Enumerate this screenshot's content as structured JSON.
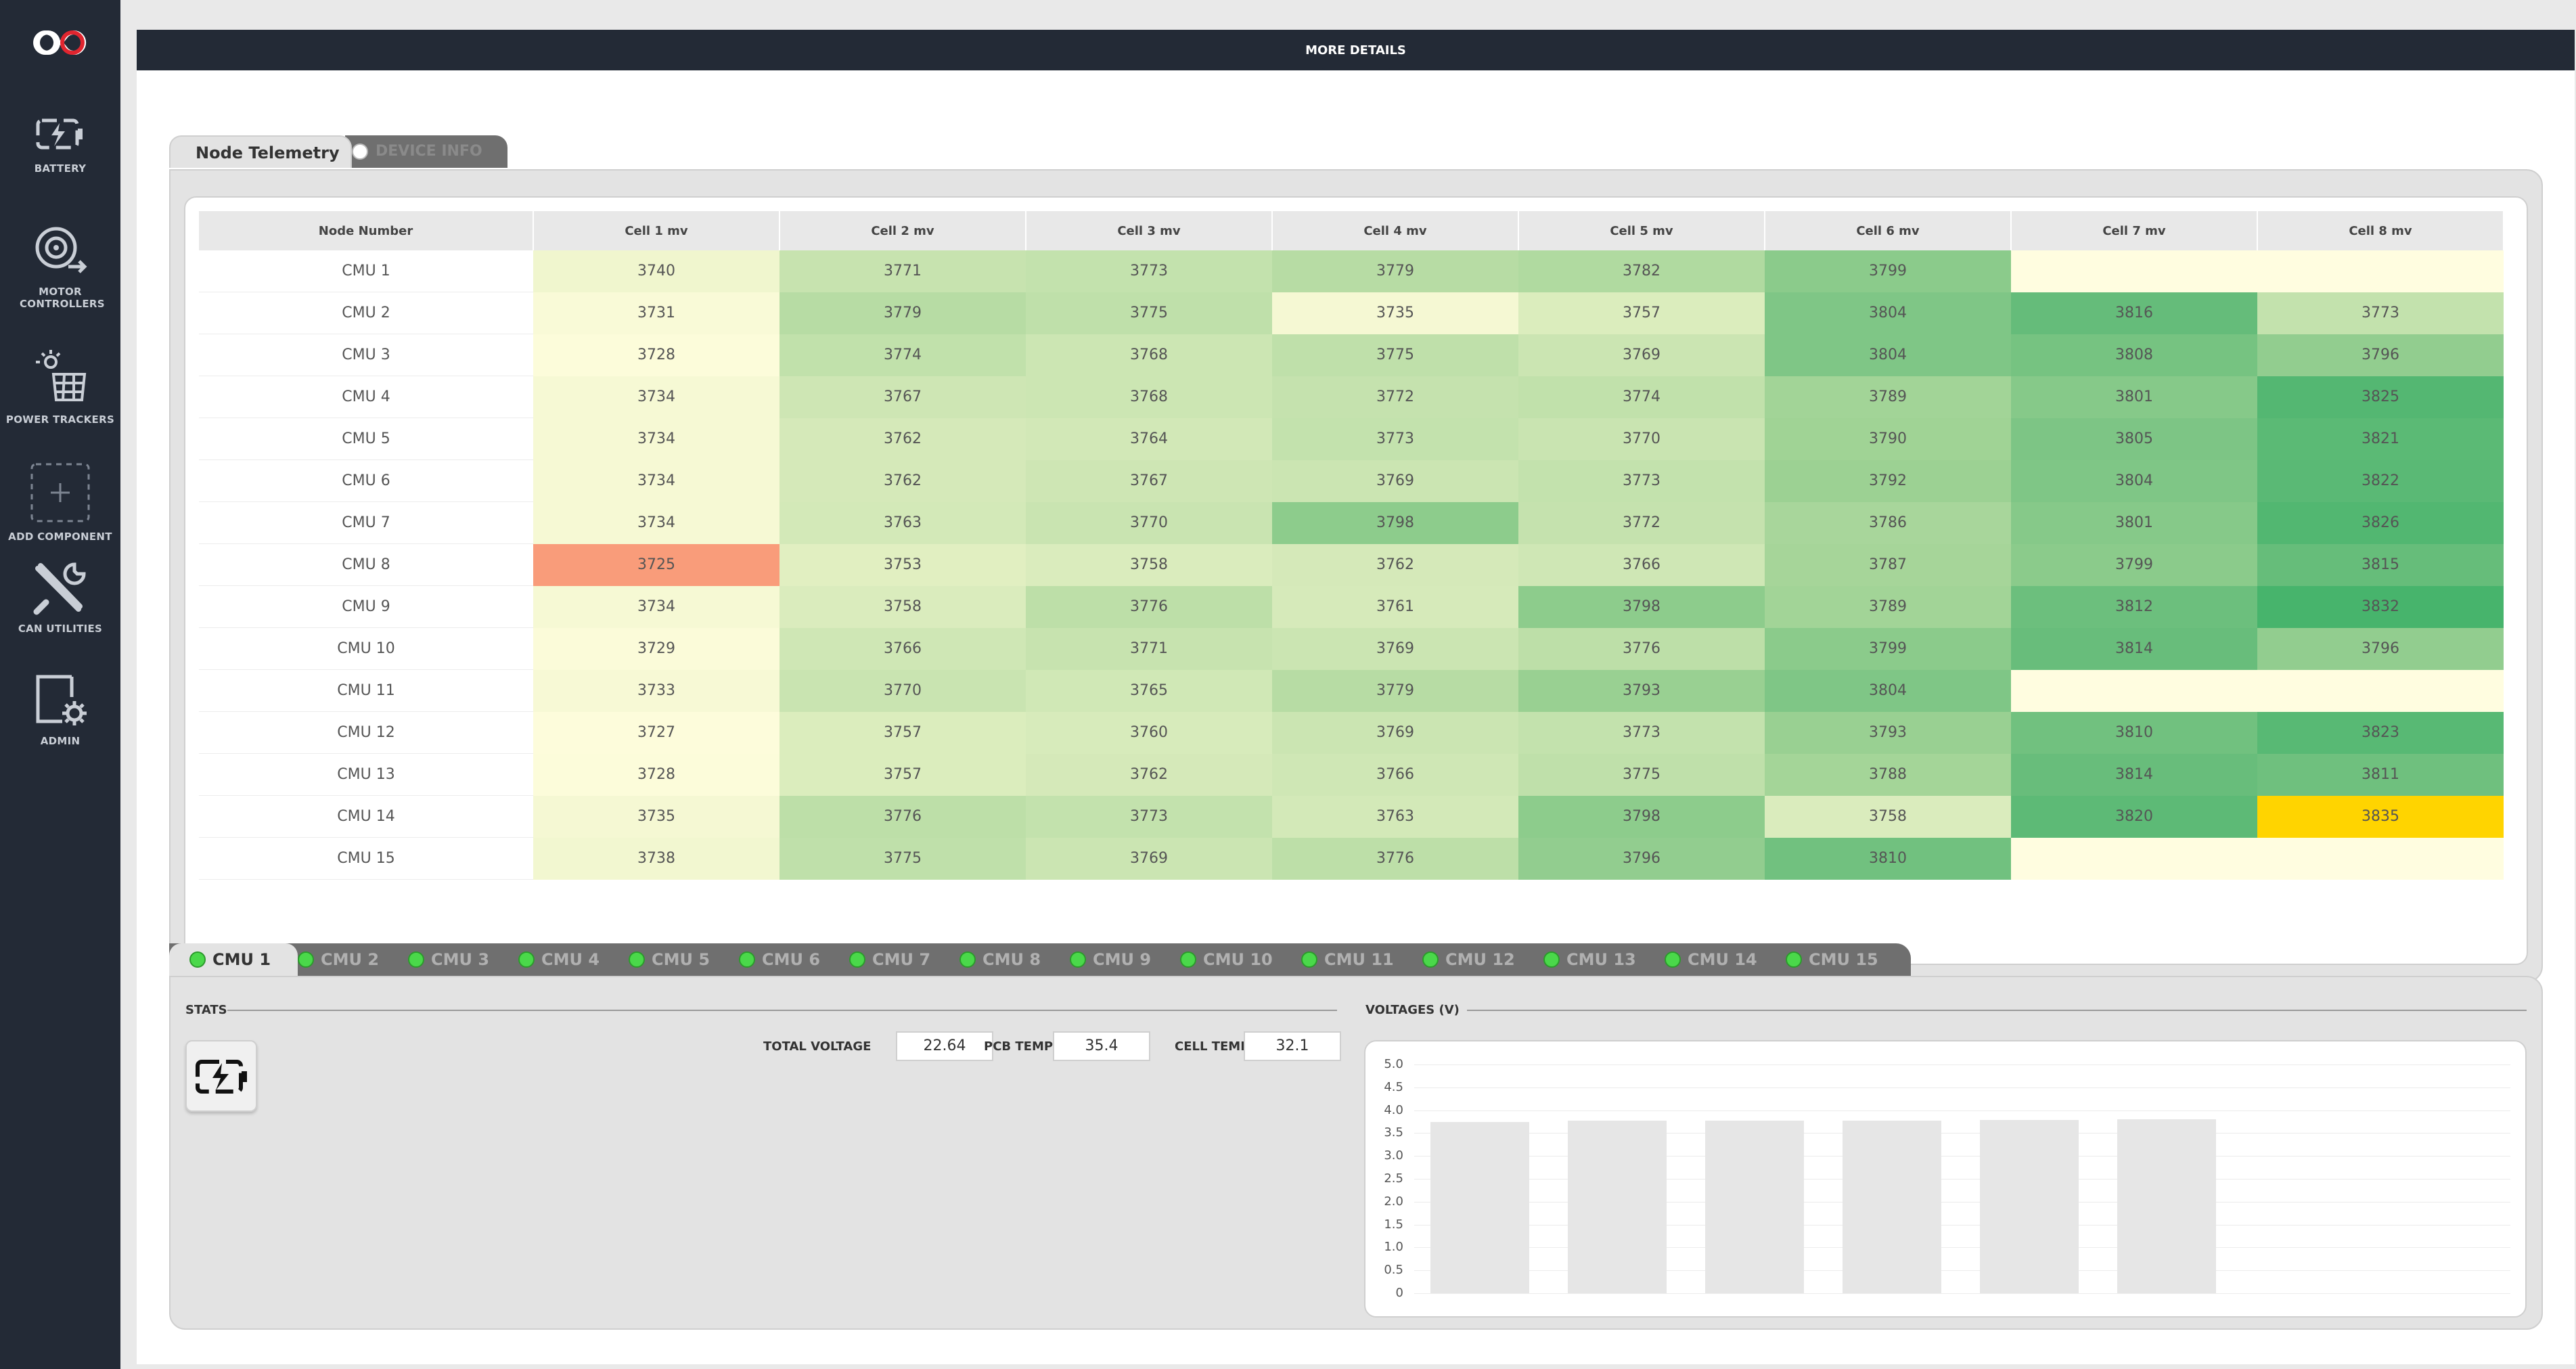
{
  "sidebar": {
    "items": [
      {
        "label": "BATTERY",
        "icon": "battery-charging-icon"
      },
      {
        "label": "MOTOR CONTROLLERS",
        "icon": "motor-controller-icon"
      },
      {
        "label": "POWER TRACKERS",
        "icon": "solar-panel-icon"
      },
      {
        "label": "ADD COMPONENT",
        "icon": "add-component-icon"
      },
      {
        "label": "CAN UTILITIES",
        "icon": "tools-icon"
      },
      {
        "label": "ADMIN",
        "icon": "admin-settings-icon"
      }
    ]
  },
  "header": {
    "label": "MORE DETAILS"
  },
  "telemetry": {
    "tabs": [
      {
        "label": "Node Telemetry",
        "active": true
      },
      {
        "label": "DEVICE INFO",
        "active": false
      }
    ],
    "columns": [
      "Node Number",
      "Cell 1 mv",
      "Cell 2 mv",
      "Cell 3 mv",
      "Cell 4 mv",
      "Cell 5 mv",
      "Cell 6 mv",
      "Cell 7 mv",
      "Cell 8 mv"
    ],
    "rows": [
      {
        "node": "CMU 1",
        "cells": [
          "3740",
          "3771",
          "3773",
          "3779",
          "3782",
          "3799",
          "",
          ""
        ]
      },
      {
        "node": "CMU 2",
        "cells": [
          "3731",
          "3779",
          "3775",
          "3735",
          "3757",
          "3804",
          "3816",
          "3773"
        ]
      },
      {
        "node": "CMU 3",
        "cells": [
          "3728",
          "3774",
          "3768",
          "3775",
          "3769",
          "3804",
          "3808",
          "3796"
        ]
      },
      {
        "node": "CMU 4",
        "cells": [
          "3734",
          "3767",
          "3768",
          "3772",
          "3774",
          "3789",
          "3801",
          "3825"
        ]
      },
      {
        "node": "CMU 5",
        "cells": [
          "3734",
          "3762",
          "3764",
          "3773",
          "3770",
          "3790",
          "3805",
          "3821"
        ]
      },
      {
        "node": "CMU 6",
        "cells": [
          "3734",
          "3762",
          "3767",
          "3769",
          "3773",
          "3792",
          "3804",
          "3822"
        ]
      },
      {
        "node": "CMU 7",
        "cells": [
          "3734",
          "3763",
          "3770",
          "3798",
          "3772",
          "3786",
          "3801",
          "3826"
        ]
      },
      {
        "node": "CMU 8",
        "cells": [
          "3725",
          "3753",
          "3758",
          "3762",
          "3766",
          "3787",
          "3799",
          "3815"
        ]
      },
      {
        "node": "CMU 9",
        "cells": [
          "3734",
          "3758",
          "3776",
          "3761",
          "3798",
          "3789",
          "3812",
          "3832"
        ]
      },
      {
        "node": "CMU 10",
        "cells": [
          "3729",
          "3766",
          "3771",
          "3769",
          "3776",
          "3799",
          "3814",
          "3796"
        ]
      },
      {
        "node": "CMU 11",
        "cells": [
          "3733",
          "3770",
          "3765",
          "3779",
          "3793",
          "3804",
          "",
          ""
        ]
      },
      {
        "node": "CMU 12",
        "cells": [
          "3727",
          "3757",
          "3760",
          "3769",
          "3773",
          "3793",
          "3810",
          "3823"
        ]
      },
      {
        "node": "CMU 13",
        "cells": [
          "3728",
          "3757",
          "3762",
          "3766",
          "3775",
          "3788",
          "3814",
          "3811"
        ]
      },
      {
        "node": "CMU 14",
        "cells": [
          "3735",
          "3776",
          "3773",
          "3763",
          "3798",
          "3758",
          "3820",
          "3835"
        ]
      },
      {
        "node": "CMU 15",
        "cells": [
          "3738",
          "3775",
          "3769",
          "3776",
          "3796",
          "3810",
          "",
          ""
        ]
      }
    ],
    "highlight": {
      "min": {
        "row": 7,
        "col": 0,
        "color": "#f99c7a"
      },
      "max": {
        "row": 13,
        "col": 7,
        "color": "#ffd400"
      }
    }
  },
  "cmu": {
    "tabs": [
      "CMU 1",
      "CMU 2",
      "CMU 3",
      "CMU 4",
      "CMU 5",
      "CMU 6",
      "CMU 7",
      "CMU 8",
      "CMU 9",
      "CMU 10",
      "CMU 11",
      "CMU 12",
      "CMU 13",
      "CMU 14",
      "CMU 15"
    ],
    "active_tab": "CMU 1",
    "stats": {
      "heading": "STATS",
      "total_voltage_label": "TOTAL VOLTAGE",
      "total_voltage": "22.64",
      "pcb_temp_label": "PCB TEMP",
      "pcb_temp": "35.4",
      "cell_temp_label": "CELL TEMP",
      "cell_temp": "32.1"
    },
    "voltages_heading": "VOLTAGES (V)"
  },
  "chart_data": {
    "type": "bar",
    "title": "VOLTAGES (V)",
    "categories": [
      "",
      "",
      "",
      "",
      "",
      ""
    ],
    "values": [
      3.74,
      3.771,
      3.773,
      3.779,
      3.782,
      3.799
    ],
    "ylim": [
      0,
      5.0
    ],
    "yticks": [
      "5.0",
      "4.5",
      "4.0",
      "3.5",
      "3.0",
      "2.5",
      "2.0",
      "1.5",
      "1.0",
      "0.5",
      "0"
    ],
    "grid": true,
    "bar_color": "#e6e6e6"
  }
}
